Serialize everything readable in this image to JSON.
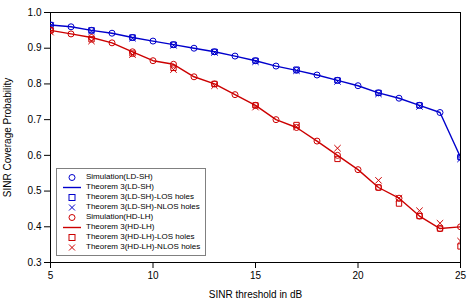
{
  "chart_data": {
    "type": "line",
    "xlabel": "SINR threshold in dB",
    "ylabel": "SINR Coverage Probability",
    "xlim": [
      5,
      25
    ],
    "ylim": [
      0.3,
      1.0
    ],
    "xticks": [
      5,
      10,
      15,
      20,
      25
    ],
    "yticks": [
      0.3,
      0.4,
      0.5,
      0.6,
      0.7,
      0.8,
      0.9,
      {
        "value": 1.0,
        "label": "1.0"
      }
    ],
    "grid": false,
    "legend": "lower left",
    "series": [
      {
        "name": "Simulation(LD-SH)",
        "type": "scatter",
        "marker": "circle",
        "color": "#0000cc",
        "x": [
          5,
          6,
          7,
          8,
          9,
          10,
          11,
          12,
          13,
          14,
          15,
          16,
          17,
          18,
          19,
          20,
          21,
          22,
          23,
          24,
          25
        ],
        "values": [
          0.965,
          0.96,
          0.95,
          0.942,
          0.93,
          0.92,
          0.91,
          0.9,
          0.89,
          0.878,
          0.865,
          0.85,
          0.838,
          0.825,
          0.81,
          0.795,
          0.775,
          0.76,
          0.74,
          0.72,
          0.595
        ]
      },
      {
        "name": "Theorem 3(LD-SH)",
        "type": "line",
        "line_style": "solid",
        "color": "#0000cc",
        "x": [
          5,
          6,
          7,
          8,
          9,
          10,
          11,
          12,
          13,
          14,
          15,
          16,
          17,
          18,
          19,
          20,
          21,
          22,
          23,
          24,
          25
        ],
        "values": [
          0.965,
          0.96,
          0.95,
          0.942,
          0.93,
          0.92,
          0.91,
          0.9,
          0.89,
          0.878,
          0.865,
          0.85,
          0.838,
          0.825,
          0.81,
          0.795,
          0.775,
          0.76,
          0.74,
          0.72,
          0.595
        ]
      },
      {
        "name": "Theorem 3(LD-SH)-LOS holes",
        "type": "scatter",
        "marker": "square",
        "color": "#0000cc",
        "x": [
          5,
          7,
          9,
          11,
          13,
          15,
          17,
          19,
          21,
          23,
          25
        ],
        "values": [
          0.965,
          0.95,
          0.93,
          0.91,
          0.89,
          0.865,
          0.84,
          0.81,
          0.775,
          0.74,
          0.595
        ]
      },
      {
        "name": "Theorem 3(LD-SH)-NLOS holes",
        "type": "scatter",
        "marker": "x",
        "color": "#0000cc",
        "x": [
          5,
          7,
          9,
          11,
          13,
          15,
          17,
          19,
          21,
          23,
          25
        ],
        "values": [
          0.963,
          0.948,
          0.928,
          0.908,
          0.888,
          0.862,
          0.837,
          0.807,
          0.772,
          0.737,
          0.59
        ]
      },
      {
        "name": "Simulation(HD-LH)",
        "type": "scatter",
        "marker": "circle",
        "color": "#cc0000",
        "x": [
          5,
          6,
          7,
          8,
          9,
          10,
          11,
          12,
          13,
          14,
          15,
          16,
          17,
          18,
          19,
          20,
          21,
          22,
          23,
          24,
          25
        ],
        "values": [
          0.95,
          0.94,
          0.93,
          0.915,
          0.89,
          0.865,
          0.855,
          0.82,
          0.8,
          0.77,
          0.74,
          0.7,
          0.678,
          0.64,
          0.6,
          0.56,
          0.51,
          0.48,
          0.43,
          0.395,
          0.4
        ]
      },
      {
        "name": "Theorem 3(HD-LH)",
        "type": "line",
        "line_style": "solid",
        "color": "#cc0000",
        "x": [
          5,
          6,
          7,
          8,
          9,
          10,
          11,
          12,
          13,
          14,
          15,
          16,
          17,
          18,
          19,
          20,
          21,
          22,
          23,
          24,
          25
        ],
        "values": [
          0.95,
          0.94,
          0.93,
          0.915,
          0.89,
          0.865,
          0.855,
          0.82,
          0.8,
          0.77,
          0.74,
          0.7,
          0.678,
          0.64,
          0.6,
          0.56,
          0.51,
          0.48,
          0.43,
          0.395,
          0.4
        ]
      },
      {
        "name": "Theorem 3(HD-LH)-LOS holes",
        "type": "scatter",
        "marker": "square",
        "color": "#cc0000",
        "x": [
          5,
          7,
          9,
          11,
          13,
          15,
          17,
          19,
          21,
          22,
          23,
          24,
          25
        ],
        "values": [
          0.95,
          0.925,
          0.885,
          0.845,
          0.8,
          0.74,
          0.685,
          0.59,
          0.51,
          0.465,
          0.43,
          0.395,
          0.345
        ]
      },
      {
        "name": "Theorem 3(HD-LH)-NLOS holes",
        "type": "scatter",
        "marker": "x",
        "color": "#cc0000",
        "x": [
          5,
          7,
          9,
          11,
          13,
          15,
          17,
          19,
          21,
          22,
          23,
          24,
          25
        ],
        "values": [
          0.945,
          0.92,
          0.882,
          0.84,
          0.795,
          0.735,
          0.68,
          0.62,
          0.53,
          0.48,
          0.445,
          0.41,
          0.36
        ]
      }
    ]
  }
}
